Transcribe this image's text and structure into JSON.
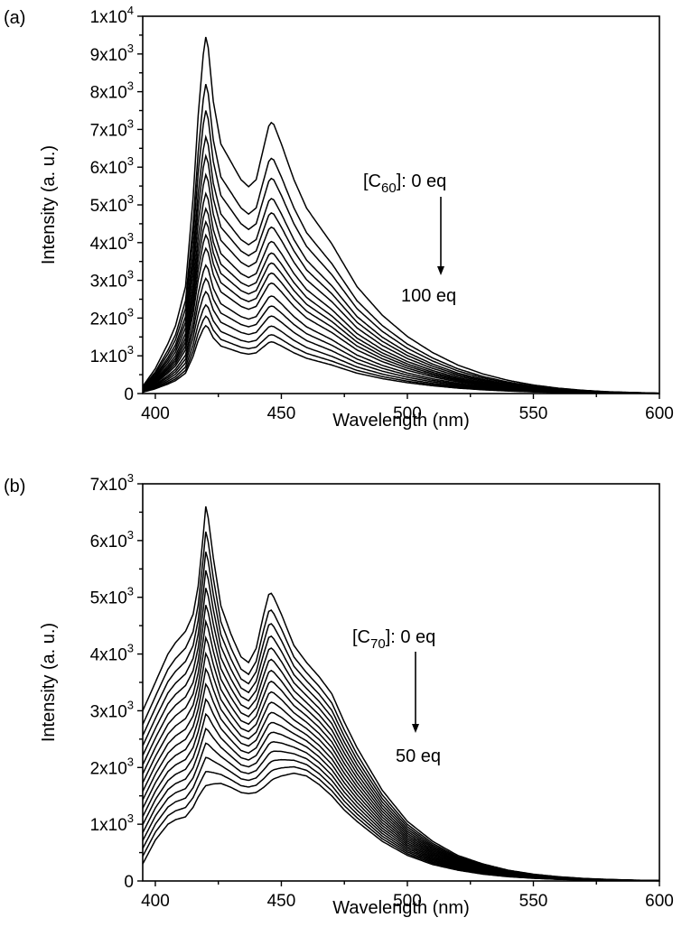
{
  "chart_data": [
    {
      "type": "line",
      "panel_label": "(a)",
      "xlabel": "Wavelength (nm)",
      "ylabel": "Intensity (a. u.)",
      "xlim": [
        395,
        600
      ],
      "ylim": [
        0,
        10000
      ],
      "xticks": [
        {
          "value": 400,
          "label": "400"
        },
        {
          "value": 450,
          "label": "450"
        },
        {
          "value": 500,
          "label": "500"
        },
        {
          "value": 550,
          "label": "550"
        },
        {
          "value": 600,
          "label": "600"
        }
      ],
      "yticks": [
        {
          "value": 0,
          "mant": "0",
          "exp": ""
        },
        {
          "value": 1000,
          "mant": "1x10",
          "exp": "3"
        },
        {
          "value": 2000,
          "mant": "2x10",
          "exp": "3"
        },
        {
          "value": 3000,
          "mant": "3x10",
          "exp": "3"
        },
        {
          "value": 4000,
          "mant": "4x10",
          "exp": "3"
        },
        {
          "value": 5000,
          "mant": "5x10",
          "exp": "3"
        },
        {
          "value": 6000,
          "mant": "6x10",
          "exp": "3"
        },
        {
          "value": 7000,
          "mant": "7x10",
          "exp": "3"
        },
        {
          "value": 8000,
          "mant": "8x10",
          "exp": "3"
        },
        {
          "value": 9000,
          "mant": "9x10",
          "exp": "3"
        },
        {
          "value": 10000,
          "mant": "1x10",
          "exp": "4"
        }
      ],
      "annotation": {
        "start_prefix": "[C",
        "start_sub": "60",
        "start_suffix": "]: 0 eq",
        "end": "100 eq"
      },
      "profile": {
        "x": [
          395,
          400,
          405,
          408,
          412,
          415,
          417,
          419,
          420,
          421,
          423,
          426,
          430,
          434,
          437,
          440,
          443,
          445,
          446,
          447,
          450,
          455,
          460,
          465,
          470,
          475,
          480,
          490,
          500,
          510,
          520,
          530,
          540,
          550,
          560,
          570,
          580,
          590,
          600
        ],
        "y": [
          0.02,
          0.07,
          0.14,
          0.19,
          0.3,
          0.55,
          0.78,
          0.95,
          1.0,
          0.97,
          0.82,
          0.7,
          0.65,
          0.6,
          0.58,
          0.6,
          0.69,
          0.75,
          0.76,
          0.755,
          0.7,
          0.6,
          0.52,
          0.47,
          0.42,
          0.36,
          0.3,
          0.22,
          0.16,
          0.115,
          0.08,
          0.055,
          0.037,
          0.024,
          0.015,
          0.009,
          0.005,
          0.003,
          0.001
        ]
      },
      "series_peaks": [
        9450,
        8200,
        7500,
        6800,
        6300,
        5800,
        5300,
        4900,
        4550,
        4200,
        3850,
        3400,
        3050,
        2700,
        2350,
        2050,
        1800
      ]
    },
    {
      "type": "line",
      "panel_label": "(b)",
      "xlabel": "Wavelength (nm)",
      "ylabel": "Intensity (a. u.)",
      "xlim": [
        395,
        600
      ],
      "ylim": [
        0,
        7000
      ],
      "xticks": [
        {
          "value": 400,
          "label": "400"
        },
        {
          "value": 450,
          "label": "450"
        },
        {
          "value": 500,
          "label": "500"
        },
        {
          "value": 550,
          "label": "550"
        },
        {
          "value": 600,
          "label": "600"
        }
      ],
      "yticks": [
        {
          "value": 0,
          "mant": "0",
          "exp": ""
        },
        {
          "value": 1000,
          "mant": "1x10",
          "exp": "3"
        },
        {
          "value": 2000,
          "mant": "2x10",
          "exp": "3"
        },
        {
          "value": 3000,
          "mant": "3x10",
          "exp": "3"
        },
        {
          "value": 4000,
          "mant": "4x10",
          "exp": "3"
        },
        {
          "value": 5000,
          "mant": "5x10",
          "exp": "3"
        },
        {
          "value": 6000,
          "mant": "6x10",
          "exp": "3"
        },
        {
          "value": 7000,
          "mant": "7x10",
          "exp": "3"
        }
      ],
      "annotation": {
        "start_prefix": "[C",
        "start_sub": "70",
        "start_suffix": "]: 0 eq",
        "end": "50 eq"
      },
      "profile_start": {
        "x": [
          395,
          400,
          405,
          408,
          412,
          415,
          417,
          419,
          420,
          421,
          423,
          426,
          430,
          434,
          437,
          440,
          443,
          445,
          446,
          447,
          450,
          455,
          460,
          465,
          470,
          475,
          480,
          490,
          500,
          510,
          520,
          530,
          540,
          550,
          560,
          570,
          580,
          590,
          600
        ],
        "y": [
          3000,
          3500,
          4000,
          4200,
          4400,
          4700,
          5200,
          6100,
          6600,
          6400,
          5700,
          4850,
          4350,
          3950,
          3850,
          4100,
          4700,
          5050,
          5070,
          5000,
          4700,
          4150,
          3850,
          3600,
          3300,
          2800,
          2350,
          1600,
          1050,
          700,
          450,
          300,
          190,
          120,
          75,
          45,
          27,
          15,
          8
        ]
      },
      "profile_end": {
        "x": [
          395,
          400,
          405,
          408,
          412,
          415,
          417,
          419,
          420,
          421,
          423,
          426,
          430,
          434,
          437,
          440,
          443,
          445,
          446,
          447,
          450,
          455,
          460,
          465,
          470,
          475,
          480,
          490,
          500,
          510,
          520,
          530,
          540,
          550,
          560,
          570,
          580,
          590,
          600
        ],
        "y": [
          300,
          720,
          1000,
          1080,
          1130,
          1300,
          1480,
          1620,
          1680,
          1690,
          1710,
          1720,
          1650,
          1560,
          1540,
          1560,
          1650,
          1730,
          1770,
          1800,
          1850,
          1900,
          1850,
          1700,
          1500,
          1250,
          1050,
          700,
          450,
          290,
          190,
          120,
          75,
          47,
          28,
          17,
          10,
          5,
          2
        ]
      },
      "series_count": 18,
      "scale_start": 1.0
    }
  ]
}
